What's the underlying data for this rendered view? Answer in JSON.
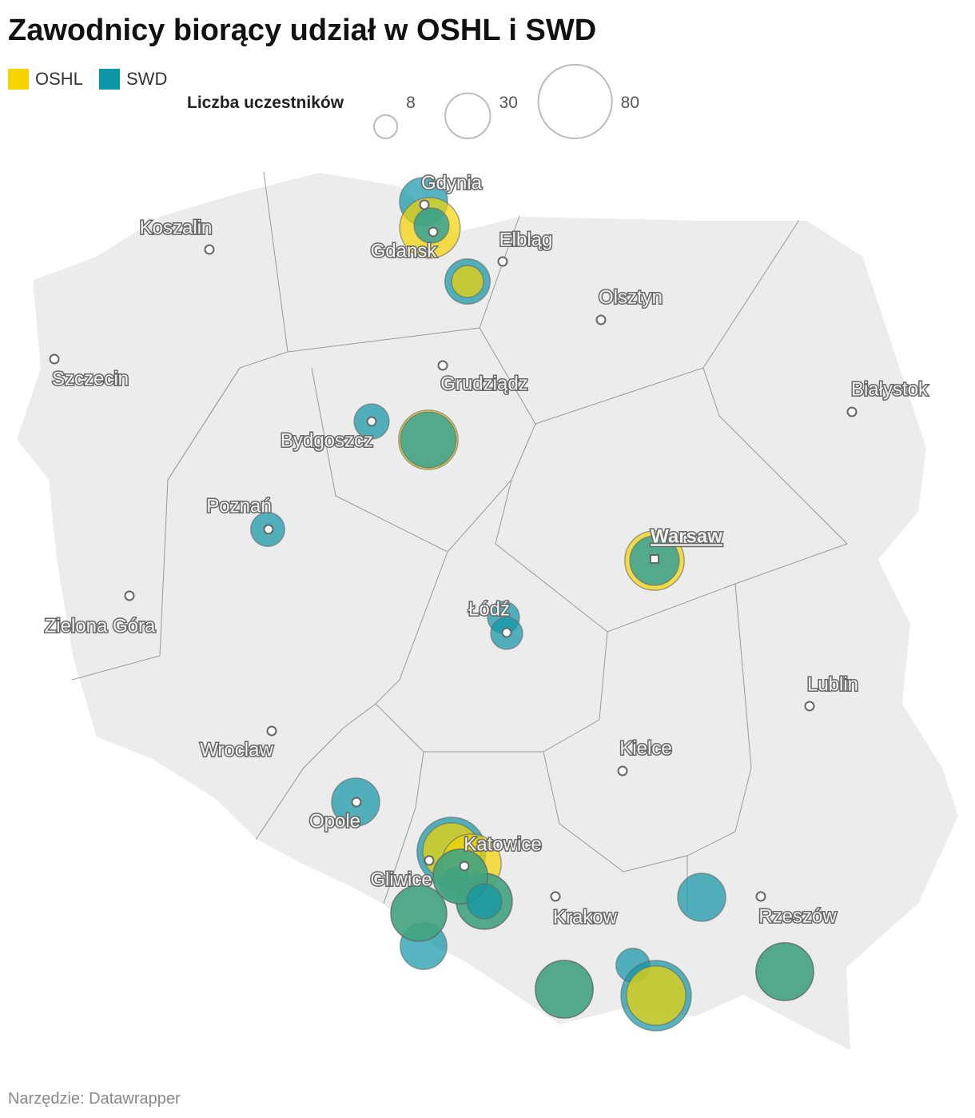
{
  "title": "Zawodnicy biorący udział w OSHL i SWD",
  "legend": {
    "items": [
      {
        "name": "OSHL",
        "color": "#f5d400"
      },
      {
        "name": "SWD",
        "color": "#0e95a6"
      }
    ],
    "size_title": "Liczba uczestników",
    "sizes": [
      8,
      30,
      80
    ]
  },
  "cities": [
    "Gdynia",
    "Gdansk",
    "Koszalin",
    "Elbląg",
    "Olsztyn",
    "Szczecin",
    "Grudziądz",
    "Białystok",
    "Bydgoszcz",
    "Poznań",
    "Warsaw",
    "Łódź",
    "Zielona Góra",
    "Lublin",
    "Wroclaw",
    "Kielce",
    "Opole",
    "Katowice",
    "Gliwice",
    "Krakow",
    "Rzeszów"
  ],
  "bubbles": [
    {
      "series": "SWD",
      "value": 34
    },
    {
      "series": "OSHL",
      "value": 54
    },
    {
      "series": "SWD",
      "value": 18
    },
    {
      "series": "SWD",
      "value": 30
    },
    {
      "series": "OSHL",
      "value": 15
    },
    {
      "series": "SWD",
      "value": 18
    },
    {
      "series": "OSHL",
      "value": 52
    },
    {
      "series": "SWD",
      "value": 46
    },
    {
      "series": "SWD",
      "value": 17
    },
    {
      "series": "OSHL",
      "value": 52
    },
    {
      "series": "SWD",
      "value": 36
    },
    {
      "series": "SWD",
      "value": 15
    },
    {
      "series": "SWD",
      "value": 15
    },
    {
      "series": "SWD",
      "value": 34
    },
    {
      "series": "SWD",
      "value": 70
    },
    {
      "series": "OSHL",
      "value": 49
    },
    {
      "series": "OSHL",
      "value": 52
    },
    {
      "series": "OSHL",
      "value": 46
    },
    {
      "series": "SWD",
      "value": 46
    },
    {
      "series": "SWD",
      "value": 15
    },
    {
      "series": "OSHL",
      "value": 44
    },
    {
      "series": "SWD",
      "value": 44
    },
    {
      "series": "SWD",
      "value": 18
    },
    {
      "series": "SWD",
      "value": 32
    },
    {
      "series": "OSHL",
      "value": 46
    },
    {
      "series": "SWD",
      "value": 46
    },
    {
      "series": "SWD",
      "value": 34
    },
    {
      "series": "OSHL",
      "value": 49
    },
    {
      "series": "SWD",
      "value": 49
    },
    {
      "series": "SWD",
      "value": 17
    },
    {
      "series": "SWD",
      "value": 73
    },
    {
      "series": "OSHL",
      "value": 52
    },
    {
      "series": "OSHL",
      "value": 49
    },
    {
      "series": "SWD",
      "value": 49
    }
  ],
  "footer": "Narzędzie: Datawrapper"
}
